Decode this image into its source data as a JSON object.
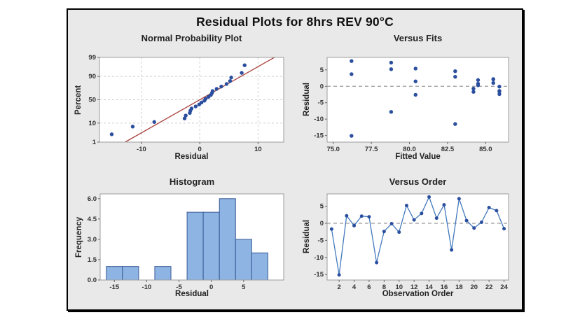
{
  "figure": {
    "title": "Residual Plots for 8hrs REV 90°C"
  },
  "colors": {
    "panel_bg": "#e9e9e9",
    "plot_bg": "#ffffff",
    "frame": "#9c9c9c",
    "grid": "#cfcfcf",
    "zero_line": "#9a9a9a",
    "marker": "#2b4f9e",
    "line": "#4379bd",
    "hist_fill": "#8db4e2",
    "hist_stroke": "#3a5a96",
    "fit_line": "#a9423c"
  },
  "chart_data": [
    {
      "id": "npp",
      "type": "scatter",
      "title": "Normal Probability Plot",
      "xlabel": "Residual",
      "ylabel": "Percent",
      "yscale": "probit",
      "xlim": [
        -17.2,
        14.4
      ],
      "ylim": [
        1,
        99
      ],
      "xticks": [
        -10,
        0,
        10
      ],
      "xtick_labels": [
        "-10",
        "0",
        "10"
      ],
      "yticks": [
        1,
        10,
        50,
        90,
        99
      ],
      "ytick_labels": [
        "1",
        "10",
        "50",
        "90",
        "99"
      ],
      "grid": true,
      "fit_line": {
        "x1": -12.8,
        "p1": 1,
        "x2": 12.8,
        "p2": 99
      },
      "points": [
        [
          -15.1,
          2.9
        ],
        [
          -11.5,
          7.0
        ],
        [
          -7.8,
          11.1
        ],
        [
          -2.6,
          15.2
        ],
        [
          -2.4,
          19.3
        ],
        [
          -1.7,
          23.4
        ],
        [
          -1.6,
          27.5
        ],
        [
          -1.4,
          31.6
        ],
        [
          -0.7,
          35.7
        ],
        [
          -0.1,
          39.8
        ],
        [
          0.3,
          43.9
        ],
        [
          0.8,
          48.0
        ],
        [
          1.0,
          52.0
        ],
        [
          1.5,
          56.1
        ],
        [
          1.9,
          60.2
        ],
        [
          2.1,
          64.3
        ],
        [
          2.2,
          68.4
        ],
        [
          2.9,
          72.5
        ],
        [
          3.7,
          76.6
        ],
        [
          4.6,
          80.7
        ],
        [
          5.2,
          84.8
        ],
        [
          5.4,
          88.9
        ],
        [
          7.2,
          93.0
        ],
        [
          7.7,
          97.1
        ]
      ]
    },
    {
      "id": "fits",
      "type": "scatter",
      "title": "Versus Fits",
      "xlabel": "Fitted Value",
      "ylabel": "Residual",
      "xlim": [
        74.6,
        86.5
      ],
      "ylim": [
        -17,
        8.8
      ],
      "xticks": [
        75,
        77.5,
        80,
        82.5,
        85
      ],
      "xtick_labels": [
        "75.0",
        "77.5",
        "80.0",
        "82.5",
        "85.0"
      ],
      "yticks": [
        -15,
        -10,
        -5,
        0,
        5
      ],
      "ytick_labels": [
        "-15",
        "-10",
        "-5",
        "0",
        "5"
      ],
      "zero_line": true,
      "points": [
        [
          76.2,
          7.7
        ],
        [
          76.2,
          3.7
        ],
        [
          76.2,
          -15.1
        ],
        [
          78.8,
          7.2
        ],
        [
          78.8,
          5.2
        ],
        [
          78.8,
          -7.8
        ],
        [
          80.4,
          5.4
        ],
        [
          80.4,
          1.5
        ],
        [
          80.4,
          -2.6
        ],
        [
          83.0,
          4.6
        ],
        [
          83.0,
          2.9
        ],
        [
          83.0,
          -11.5
        ],
        [
          84.2,
          -0.7
        ],
        [
          84.2,
          -1.7
        ],
        [
          84.5,
          1.9
        ],
        [
          84.5,
          0.8
        ],
        [
          84.5,
          0.3
        ],
        [
          85.5,
          2.2
        ],
        [
          85.5,
          2.1
        ],
        [
          85.5,
          1.0
        ],
        [
          85.9,
          -0.1
        ],
        [
          85.9,
          -1.4
        ],
        [
          85.9,
          -1.6
        ],
        [
          85.9,
          -2.4
        ]
      ]
    },
    {
      "id": "hist",
      "type": "bar",
      "title": "Histogram",
      "xlabel": "Residual",
      "ylabel": "Frequency",
      "xlim": [
        -17.2,
        11.2
      ],
      "ylim": [
        0,
        6.35
      ],
      "xticks": [
        -15,
        -10,
        -5,
        0,
        5
      ],
      "xtick_labels": [
        "-15",
        "-10",
        "-5",
        "0",
        "5"
      ],
      "yticks": [
        0,
        1.5,
        3,
        4.5,
        6
      ],
      "ytick_labels": [
        "0.0",
        "1.5",
        "3.0",
        "4.5",
        "6.0"
      ],
      "bin_width": 2.5,
      "bins": [
        {
          "center": -15,
          "count": 1
        },
        {
          "center": -12.5,
          "count": 1
        },
        {
          "center": -10,
          "count": 0
        },
        {
          "center": -7.5,
          "count": 1
        },
        {
          "center": -5,
          "count": 0
        },
        {
          "center": -2.5,
          "count": 5
        },
        {
          "center": 0,
          "count": 5
        },
        {
          "center": 2.5,
          "count": 6
        },
        {
          "center": 5,
          "count": 3
        },
        {
          "center": 7.5,
          "count": 2
        }
      ]
    },
    {
      "id": "order",
      "type": "line",
      "title": "Versus Order",
      "xlabel": "Observation Order",
      "ylabel": "Residual",
      "xlim": [
        0.4,
        24.6
      ],
      "ylim": [
        -16.6,
        8.6
      ],
      "xticks": [
        2,
        4,
        6,
        8,
        10,
        12,
        14,
        16,
        18,
        20,
        22,
        24
      ],
      "xtick_labels": [
        "2",
        "4",
        "6",
        "8",
        "10",
        "12",
        "14",
        "16",
        "18",
        "20",
        "22",
        "24"
      ],
      "yticks": [
        -15,
        -10,
        -5,
        0,
        5
      ],
      "ytick_labels": [
        "-15",
        "-10",
        "-5",
        "0",
        "5"
      ],
      "zero_line": true,
      "x": [
        1,
        2,
        3,
        4,
        5,
        6,
        7,
        8,
        9,
        10,
        11,
        12,
        13,
        14,
        15,
        16,
        17,
        18,
        19,
        20,
        21,
        22,
        23,
        24
      ],
      "values": [
        -1.7,
        -15.1,
        2.2,
        -0.7,
        2.1,
        1.9,
        -11.5,
        -2.4,
        -0.1,
        -2.6,
        5.2,
        1.0,
        2.9,
        7.7,
        1.5,
        5.4,
        -7.8,
        7.2,
        0.8,
        -1.4,
        0.3,
        4.6,
        3.7,
        -1.6
      ]
    }
  ]
}
